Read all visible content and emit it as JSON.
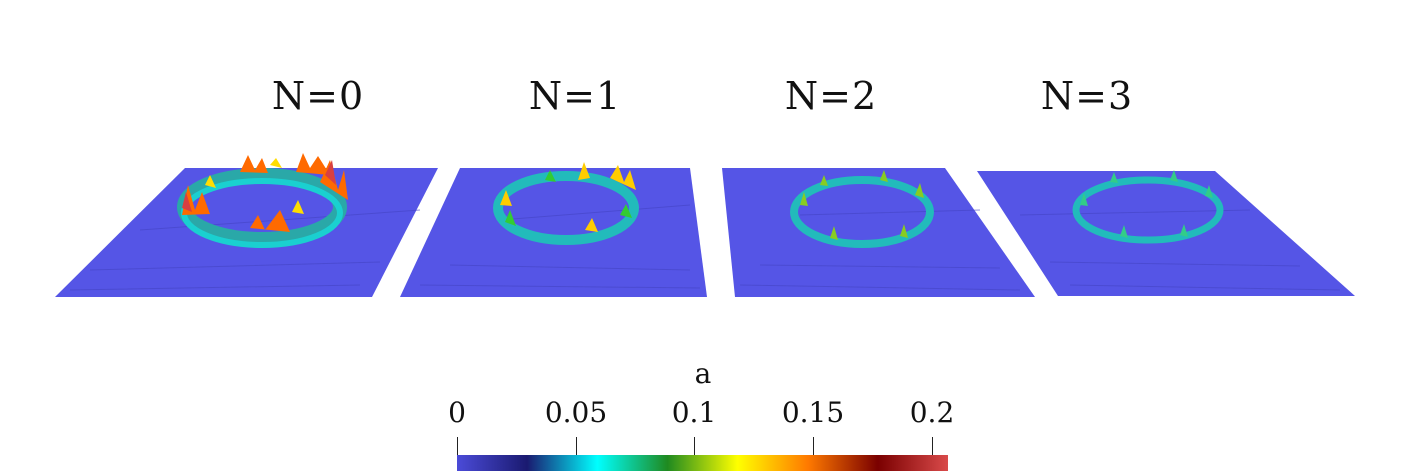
{
  "panels": [
    {
      "label": "N=0",
      "peak_color": "#d94040"
    },
    {
      "label": "N=1",
      "peak_color": "#ffcc00"
    },
    {
      "label": "N=2",
      "peak_color": "#88cc22"
    },
    {
      "label": "N=3",
      "peak_color": "#33cc88"
    }
  ],
  "colorbar": {
    "title": "a",
    "ticks": [
      "0",
      "0.05",
      "0.1",
      "0.15",
      "0.2"
    ],
    "range": [
      0,
      0.21
    ],
    "colors": [
      "#4b4bd8",
      "#1a1a70",
      "#00ffff",
      "#1f8a20",
      "#ffff00",
      "#ff7a00",
      "#7a0000",
      "#d94a4a"
    ]
  },
  "surface_color": "#5555e6"
}
